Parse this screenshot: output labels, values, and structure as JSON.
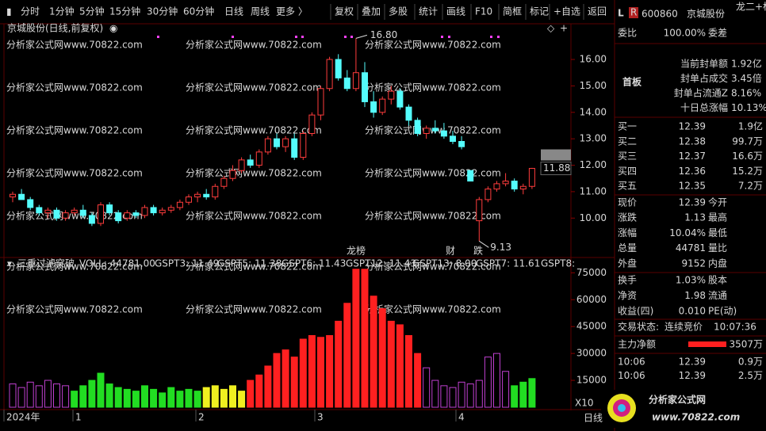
{
  "toolbar": {
    "left": [
      "分时",
      "1分钟",
      "5分钟",
      "15分钟",
      "30分钟",
      "60分钟",
      "日线",
      "周线",
      "更多 〉"
    ],
    "active": "日线",
    "right": [
      "复权",
      "叠加",
      "多股",
      "统计",
      "画线",
      "F10",
      "简框",
      "标记",
      "+自选",
      "返回"
    ]
  },
  "chart_data": {
    "type": "candlestick",
    "title": "京城股份(日线,前复权)",
    "watermark": "分析家公式网www.70822.com",
    "candles": [
      [
        10.8,
        11.0,
        10.6,
        10.9
      ],
      [
        10.9,
        11.1,
        10.7,
        10.7
      ],
      [
        10.7,
        10.8,
        10.3,
        10.4
      ],
      [
        10.4,
        10.5,
        10.1,
        10.2
      ],
      [
        10.2,
        10.4,
        10.0,
        10.3
      ],
      [
        10.3,
        10.4,
        9.9,
        10.0
      ],
      [
        10.0,
        10.3,
        9.9,
        10.2
      ],
      [
        10.2,
        10.4,
        10.1,
        10.3
      ],
      [
        10.3,
        10.5,
        10.0,
        10.1
      ],
      [
        10.1,
        10.2,
        9.7,
        9.8
      ],
      [
        9.8,
        10.6,
        9.7,
        10.5
      ],
      [
        10.5,
        10.6,
        10.1,
        10.2
      ],
      [
        10.2,
        10.3,
        9.8,
        9.9
      ],
      [
        10.0,
        10.3,
        9.9,
        10.2
      ],
      [
        10.2,
        10.3,
        10.0,
        10.1
      ],
      [
        10.1,
        10.5,
        10.0,
        10.4
      ],
      [
        10.4,
        10.5,
        10.1,
        10.2
      ],
      [
        10.2,
        10.4,
        10.1,
        10.3
      ],
      [
        10.3,
        10.5,
        10.2,
        10.4
      ],
      [
        10.4,
        10.7,
        10.3,
        10.6
      ],
      [
        10.6,
        10.9,
        10.5,
        10.8
      ],
      [
        10.8,
        11.0,
        10.6,
        10.9
      ],
      [
        10.9,
        11.1,
        10.7,
        10.8
      ],
      [
        10.8,
        11.3,
        10.7,
        11.2
      ],
      [
        11.2,
        11.6,
        11.1,
        11.5
      ],
      [
        11.5,
        12.0,
        11.4,
        11.8
      ],
      [
        11.8,
        12.3,
        11.7,
        12.2
      ],
      [
        12.2,
        12.4,
        11.9,
        12.0
      ],
      [
        12.0,
        12.6,
        11.9,
        12.5
      ],
      [
        12.5,
        13.1,
        12.4,
        13.0
      ],
      [
        13.0,
        13.2,
        12.6,
        12.7
      ],
      [
        12.7,
        13.1,
        12.5,
        13.0
      ],
      [
        13.0,
        13.2,
        12.2,
        12.3
      ],
      [
        12.3,
        13.3,
        12.2,
        13.2
      ],
      [
        13.2,
        14.0,
        13.1,
        13.9
      ],
      [
        13.9,
        15.0,
        13.7,
        14.9
      ],
      [
        14.9,
        16.1,
        14.8,
        16.0
      ],
      [
        16.0,
        16.2,
        15.2,
        15.3
      ],
      [
        15.3,
        15.6,
        14.8,
        14.9
      ],
      [
        14.9,
        16.8,
        14.8,
        15.5
      ],
      [
        15.5,
        15.9,
        14.2,
        14.4
      ],
      [
        14.4,
        14.8,
        13.8,
        14.0
      ],
      [
        14.0,
        14.6,
        13.9,
        14.5
      ],
      [
        14.5,
        15.0,
        14.3,
        14.8
      ],
      [
        14.8,
        14.9,
        14.1,
        14.2
      ],
      [
        14.2,
        14.3,
        13.5,
        13.7
      ],
      [
        13.7,
        13.8,
        13.1,
        13.2
      ],
      [
        13.2,
        13.5,
        13.0,
        13.4
      ],
      [
        13.4,
        13.7,
        13.2,
        13.3
      ],
      [
        13.3,
        13.6,
        13.0,
        13.1
      ],
      [
        13.1,
        13.3,
        12.8,
        12.9
      ],
      [
        12.9,
        13.1,
        12.6,
        12.7
      ],
      [
        11.8,
        11.8,
        11.4,
        11.4
      ],
      [
        9.9,
        10.8,
        9.13,
        10.7
      ],
      [
        10.7,
        11.2,
        10.6,
        11.1
      ],
      [
        11.1,
        11.4,
        11.0,
        11.3
      ],
      [
        11.3,
        11.7,
        11.2,
        11.4
      ],
      [
        11.4,
        11.5,
        11.0,
        11.1
      ],
      [
        11.1,
        11.3,
        10.9,
        11.2
      ],
      [
        11.2,
        11.9,
        11.1,
        11.88
      ]
    ],
    "up_color": "#ff3c3c",
    "down_color": "#54fcfc",
    "ylim": [
      8.6,
      17.35
    ],
    "yticks": [
      {
        "value": 10,
        "label": "10.00"
      },
      {
        "value": 11,
        "label": "11.00"
      },
      {
        "value": 12,
        "label": "12.00"
      },
      {
        "value": 13,
        "label": "13.00"
      },
      {
        "value": 14,
        "label": "14.00"
      },
      {
        "value": 15,
        "label": "15.00"
      },
      {
        "value": 16,
        "label": "16.00"
      }
    ],
    "high_label": "16.80",
    "low_label": "9.13",
    "last_label": "11.88",
    "markers": [
      {
        "text": "龙榜",
        "color": "#ff6ad5"
      },
      {
        "text": "财",
        "color": "#54c0ff"
      },
      {
        "text": "跌",
        "color": "#30ff30"
      }
    ],
    "indicator": {
      "name": "三重过滤突破",
      "items": [
        "VOLL: 44781.00",
        "GSPT3: 11.49",
        "GSPT5: 11.38",
        "GSPT6: 11.43",
        "GSPT12: 11.43",
        "GSPT13: 8.00",
        "GSPT7: 11.61",
        "GSPT8:"
      ],
      "highlight": "GSPT12: 11.43",
      "values": [
        13000,
        11000,
        14000,
        12000,
        15000,
        13000,
        12000,
        9000,
        12000,
        15000,
        19000,
        13000,
        11000,
        10000,
        9000,
        12000,
        10000,
        8000,
        11000,
        9000,
        10000,
        9000,
        11000,
        12000,
        10000,
        12000,
        9000,
        15000,
        18000,
        23000,
        30000,
        32000,
        28000,
        38000,
        40000,
        39000,
        40000,
        48000,
        58000,
        77000,
        77000,
        62000,
        55000,
        48000,
        46000,
        40000,
        30000,
        22000,
        15000,
        12000,
        11000,
        14000,
        13000,
        15000,
        28000,
        30000,
        20000,
        12000,
        14000,
        16000
      ],
      "colors": [
        "#c040d0",
        "#c040d0",
        "#c040d0",
        "#c040d0",
        "#c040d0",
        "#c040d0",
        "#c040d0",
        "#22dd22",
        "#22dd22",
        "#22dd22",
        "#22dd22",
        "#22dd22",
        "#22dd22",
        "#22dd22",
        "#22dd22",
        "#22dd22",
        "#22dd22",
        "#22dd22",
        "#22dd22",
        "#22dd22",
        "#22dd22",
        "#22dd22",
        "#f0f020",
        "#f0f020",
        "#f0f020",
        "#f0f020",
        "#f0f020",
        "#ff2020",
        "#ff2020",
        "#ff2020",
        "#ff2020",
        "#ff2020",
        "#ff2020",
        "#ff2020",
        "#ff2020",
        "#ff2020",
        "#ff2020",
        "#ff2020",
        "#ff2020",
        "#ff2020",
        "#ff2020",
        "#ff2020",
        "#ff2020",
        "#ff2020",
        "#ff2020",
        "#ff2020",
        "#ff2020",
        "#c040d0",
        "#c040d0",
        "#c040d0",
        "#c040d0",
        "#c040d0",
        "#c040d0",
        "#c040d0",
        "#c040d0",
        "#c040d0",
        "#c040d0",
        "#22dd22",
        "#22dd22",
        "#22dd22"
      ],
      "ylim": [
        0,
        80000
      ],
      "yticks": [
        15000,
        30000,
        45000,
        60000,
        75000
      ]
    },
    "date_labels": [
      "2024年",
      "1",
      "2",
      "3",
      "4"
    ],
    "zoom": "X10",
    "period": "日线"
  },
  "quote": {
    "flags": [
      "L",
      "R"
    ],
    "code": "600860",
    "name": "京城股份",
    "tag": "龙二+标",
    "wb": [
      "委比",
      "100.00%",
      "委差"
    ],
    "first_board": "首板",
    "seal": [
      [
        "当前封单额",
        "1.92亿"
      ],
      [
        "封单占成交",
        "3.45倍"
      ],
      [
        "封单占流通Z",
        "8.16%"
      ],
      [
        "十日总涨幅",
        "10.13%"
      ]
    ],
    "bids": [
      [
        "买一",
        "12.39",
        "1.9亿"
      ],
      [
        "买二",
        "12.38",
        "99.7万"
      ],
      [
        "买三",
        "12.37",
        "16.6万"
      ],
      [
        "买四",
        "12.36",
        "15.2万"
      ],
      [
        "买五",
        "12.35",
        "7.2万"
      ]
    ],
    "stats": [
      [
        "现价",
        "12.39",
        "今开"
      ],
      [
        "涨跌",
        "1.13",
        "最高"
      ],
      [
        "涨幅",
        "10.04%",
        "最低"
      ],
      [
        "总量",
        "44781",
        "量比"
      ],
      [
        "外盘",
        "9152",
        "内盘"
      ]
    ],
    "stats2": [
      [
        "换手",
        "1.03%",
        "股本"
      ],
      [
        "净资",
        "1.98",
        "流通"
      ],
      [
        "收益(四)",
        "0.010",
        "PE(动)"
      ]
    ],
    "status": [
      "交易状态:",
      "连续竞价",
      "10:07:36"
    ],
    "main_net": [
      "主力净额",
      "3507万"
    ],
    "ticks": [
      [
        "10:06",
        "12.39",
        "0.9万"
      ],
      [
        "10:06",
        "12.39",
        "2.5万"
      ]
    ],
    "logo": [
      "分析家公式网",
      "www.70822.com"
    ]
  }
}
